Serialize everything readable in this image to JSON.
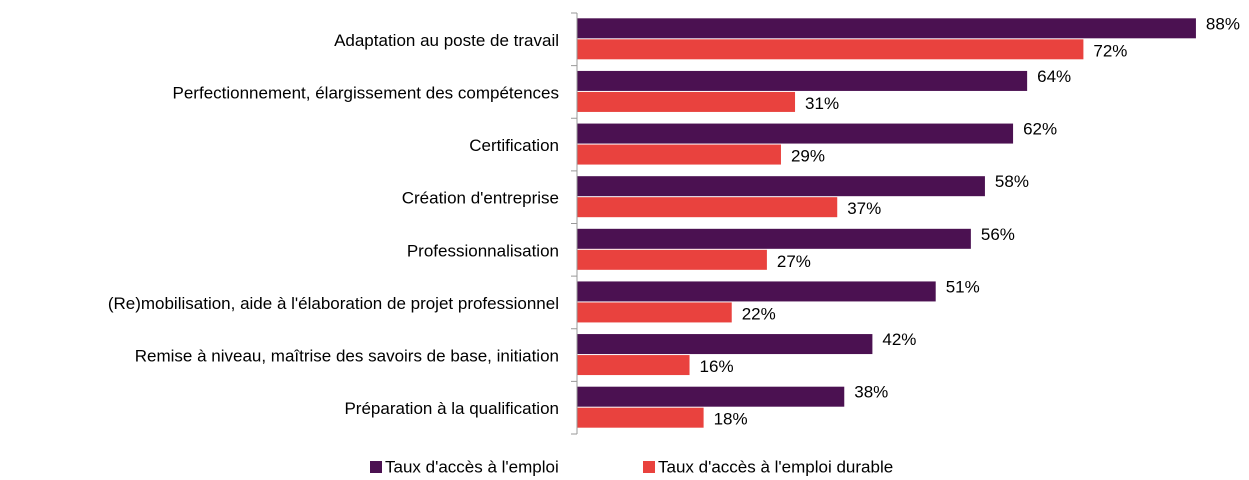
{
  "chart_data": {
    "type": "barh",
    "categories": [
      "Adaptation au poste de travail",
      "Perfectionnement, élargissement des compétences",
      "Certification",
      "Création d'entreprise",
      "Professionnalisation",
      "(Re)mobilisation, aide à l'élaboration de projet professionnel",
      "Remise à niveau, maîtrise des savoirs de base, initiation",
      "Préparation à la qualification"
    ],
    "series": [
      {
        "name": "Taux d'accès à l'emploi",
        "color": "#4b1151",
        "values": [
          88,
          64,
          62,
          58,
          56,
          51,
          42,
          38
        ],
        "value_labels": [
          "88%",
          "64%",
          "62%",
          "58%",
          "56%",
          "51%",
          "42%",
          "38%"
        ]
      },
      {
        "name": "Taux d'accès à l'emploi durable",
        "color": "#e9423e",
        "values": [
          72,
          31,
          29,
          37,
          27,
          22,
          16,
          18
        ],
        "value_labels": [
          "72%",
          "31%",
          "29%",
          "37%",
          "27%",
          "22%",
          "16%",
          "18%"
        ]
      }
    ],
    "xlim": [
      0,
      90
    ],
    "legend": "bottom"
  }
}
